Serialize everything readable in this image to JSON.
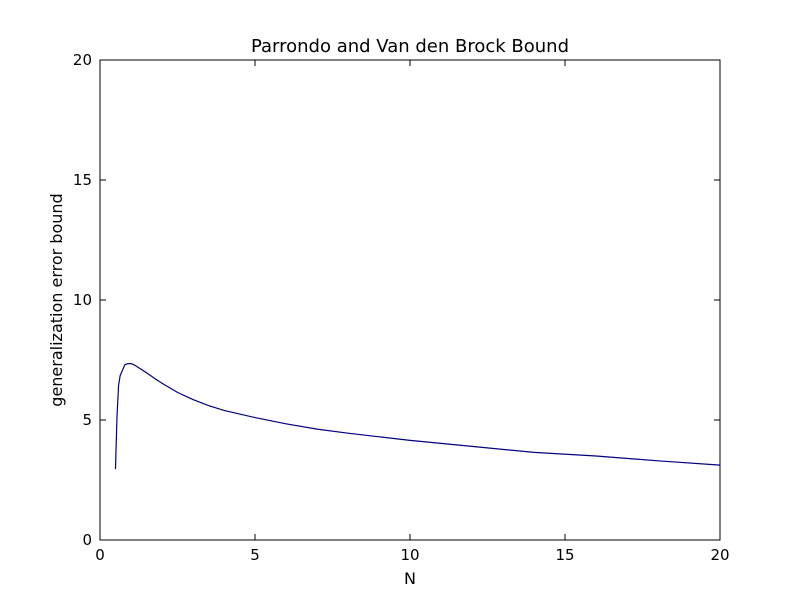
{
  "chart_data": {
    "type": "line",
    "title": "Parrondo and Van den Brock Bound",
    "xlabel": "N",
    "ylabel": "generalization error bound",
    "xlim": [
      0,
      20
    ],
    "ylim": [
      0,
      20
    ],
    "xticks": [
      "0",
      "5",
      "10",
      "15",
      "20"
    ],
    "yticks": [
      "0",
      "5",
      "10",
      "15",
      "20"
    ],
    "grid": false,
    "legend": "none",
    "series": [
      {
        "color": "#000080",
        "x": [
          0.5,
          0.52,
          0.55,
          0.6,
          0.65,
          0.7,
          0.8,
          0.9,
          1.0,
          1.1,
          1.2,
          1.4,
          1.6,
          1.8,
          2.0,
          2.5,
          3.0,
          3.5,
          4.0,
          5.0,
          6.0,
          7.0,
          8.0,
          9.0,
          10.0,
          12.0,
          14.0,
          16.0,
          18.0,
          20.0
        ],
        "y": [
          2.95,
          3.9,
          5.2,
          6.45,
          6.85,
          7.0,
          7.3,
          7.35,
          7.35,
          7.3,
          7.22,
          7.05,
          6.88,
          6.7,
          6.53,
          6.15,
          5.85,
          5.6,
          5.4,
          5.1,
          4.84,
          4.62,
          4.45,
          4.3,
          4.15,
          3.9,
          3.65,
          3.5,
          3.3,
          3.12
        ]
      }
    ]
  }
}
